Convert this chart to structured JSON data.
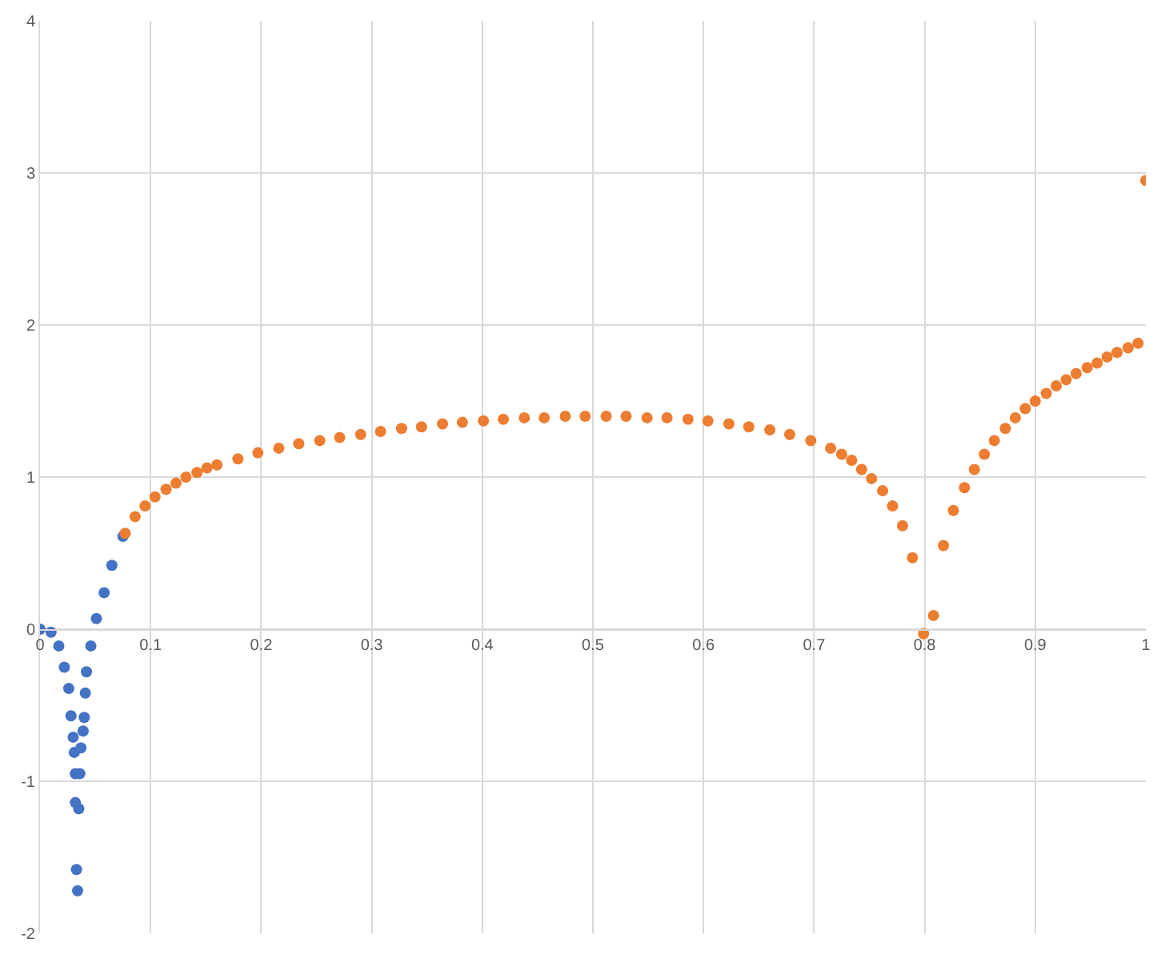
{
  "chart_data": {
    "type": "scatter",
    "marker": "circle",
    "grid": true,
    "xlim": [
      0,
      1
    ],
    "xticks": [
      0,
      0.1,
      0.2,
      0.3,
      0.4,
      0.5,
      0.6,
      0.7,
      0.8,
      0.9,
      1
    ],
    "ylim": [
      -2,
      4
    ],
    "yticks": [
      -2,
      -1,
      0,
      1,
      2,
      3,
      4
    ],
    "series": [
      {
        "color": "#4472c4",
        "x": [
          0,
          0.01,
          0.017,
          0.022,
          0.026,
          0.028,
          0.03,
          0.031,
          0.032,
          0.032,
          0.033,
          0.034,
          0.035,
          0.036,
          0.037,
          0.039,
          0.04,
          0.041,
          0.042,
          0.046,
          0.051,
          0.058,
          0.065,
          0.075
        ],
        "values": [
          0,
          -0.02,
          -0.11,
          -0.25,
          -0.39,
          -0.57,
          -0.71,
          -0.81,
          -0.95,
          -1.14,
          -1.58,
          -1.72,
          -1.18,
          -0.95,
          -0.78,
          -0.67,
          -0.58,
          -0.42,
          -0.28,
          -0.11,
          0.07,
          0.24,
          0.42,
          0.61
        ]
      },
      {
        "color": "#ed7d31",
        "x": [
          0.077,
          0.086,
          0.095,
          0.104,
          0.114,
          0.123,
          0.132,
          0.142,
          0.151,
          0.16,
          0.179,
          0.197,
          0.216,
          0.234,
          0.253,
          0.271,
          0.29,
          0.308,
          0.327,
          0.345,
          0.364,
          0.382,
          0.401,
          0.419,
          0.438,
          0.456,
          0.475,
          0.493,
          0.512,
          0.53,
          0.549,
          0.567,
          0.586,
          0.604,
          0.623,
          0.641,
          0.66,
          0.678,
          0.697,
          0.715,
          0.725,
          0.734,
          0.743,
          0.752,
          0.762,
          0.771,
          0.78,
          0.789,
          0.799,
          0.808,
          0.817,
          0.826,
          0.836,
          0.845,
          0.854,
          0.863,
          0.873,
          0.882,
          0.891,
          0.9,
          0.91,
          0.919,
          0.928,
          0.937,
          0.947,
          0.956,
          0.965,
          0.974,
          0.984,
          0.993,
          1.0
        ],
        "values": [
          0.63,
          0.74,
          0.81,
          0.87,
          0.92,
          0.96,
          1.0,
          1.03,
          1.06,
          1.08,
          1.12,
          1.16,
          1.19,
          1.22,
          1.24,
          1.26,
          1.28,
          1.3,
          1.32,
          1.33,
          1.35,
          1.36,
          1.37,
          1.38,
          1.39,
          1.39,
          1.4,
          1.4,
          1.4,
          1.4,
          1.39,
          1.39,
          1.38,
          1.37,
          1.35,
          1.33,
          1.31,
          1.28,
          1.24,
          1.19,
          1.15,
          1.11,
          1.05,
          0.99,
          0.91,
          0.81,
          0.68,
          0.47,
          -0.03,
          0.09,
          0.55,
          0.78,
          0.93,
          1.05,
          1.15,
          1.24,
          1.32,
          1.39,
          1.45,
          1.5,
          1.55,
          1.6,
          1.64,
          1.68,
          1.72,
          1.75,
          1.79,
          1.82,
          1.85,
          1.88,
          2.95
        ]
      }
    ]
  }
}
